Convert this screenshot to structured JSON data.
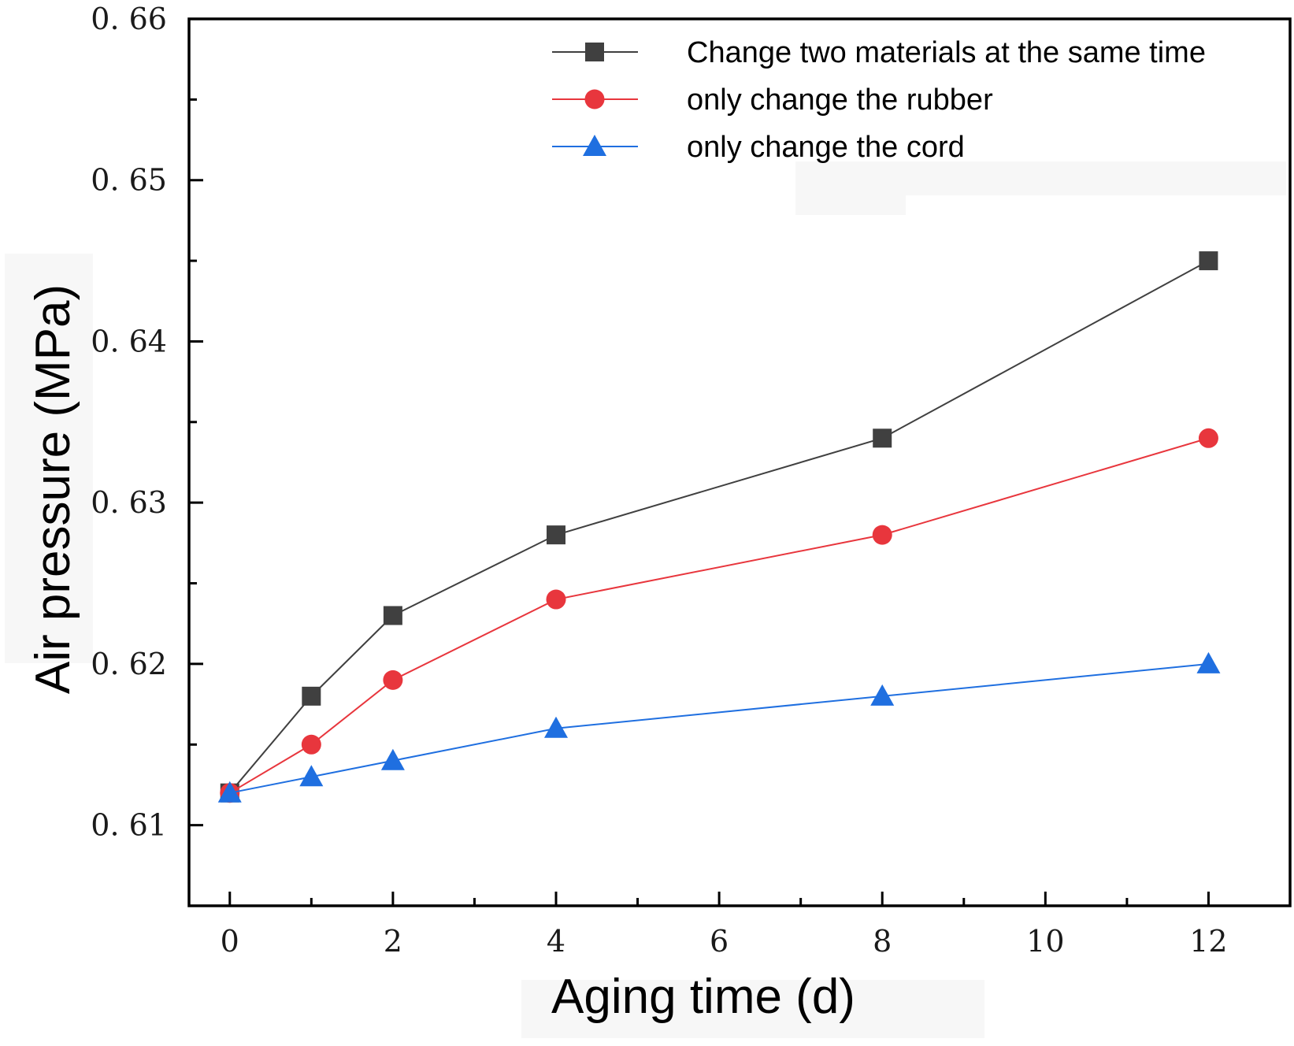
{
  "chart_data": {
    "type": "line",
    "title": "",
    "xlabel": "Aging time (d)",
    "ylabel": "Air pressure (MPa)",
    "xlim": [
      -0.5,
      13
    ],
    "ylim": [
      0.605,
      0.66
    ],
    "x_ticks": [
      0,
      2,
      4,
      6,
      8,
      10,
      12
    ],
    "x_tick_labels": [
      "0",
      "2",
      "4",
      "6",
      "8",
      "10",
      "12"
    ],
    "y_ticks": [
      0.61,
      0.62,
      0.63,
      0.64,
      0.65,
      0.66
    ],
    "y_tick_labels": [
      "0. 61",
      "0. 62",
      "0. 63",
      "0. 64",
      "0. 65",
      "0. 66"
    ],
    "x_minor_ticks": [
      1,
      3,
      5,
      7,
      9,
      11
    ],
    "y_minor_ticks": [
      0.615,
      0.625,
      0.635,
      0.645,
      0.655
    ],
    "grid": false,
    "legend_position": "top-right",
    "x": [
      0,
      1,
      2,
      4,
      8,
      12
    ],
    "series": [
      {
        "name": "Change two materials at the same time",
        "color": "#404040",
        "marker": "square",
        "values": [
          0.612,
          0.618,
          0.623,
          0.628,
          0.634,
          0.645
        ]
      },
      {
        "name": "only change the rubber",
        "color": "#e8363d",
        "marker": "circle",
        "values": [
          0.612,
          0.615,
          0.619,
          0.624,
          0.628,
          0.634
        ]
      },
      {
        "name": "only change the cord",
        "color": "#1f6fe0",
        "marker": "triangle",
        "values": [
          0.612,
          0.613,
          0.614,
          0.616,
          0.618,
          0.62
        ]
      }
    ]
  }
}
